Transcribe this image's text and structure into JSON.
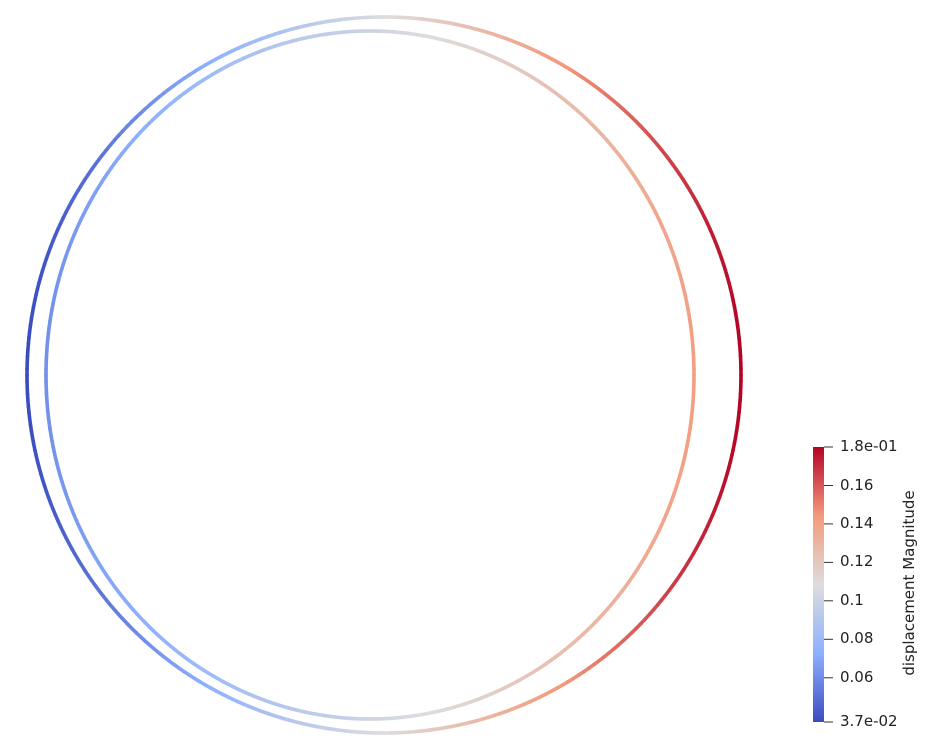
{
  "scene": {
    "description_free": true,
    "color_map": {
      "low_color": "#3b4cc0",
      "mid_color": "#dddddd",
      "high_color": "#b40426"
    }
  },
  "colorbar": {
    "title": "displacement Magnitude",
    "range": [
      0.037,
      0.18
    ],
    "tick_labels": [
      {
        "label": "1.8e-01",
        "value": 0.18
      },
      {
        "label": "0.16",
        "value": 0.16
      },
      {
        "label": "0.14",
        "value": 0.14
      },
      {
        "label": "0.12",
        "value": 0.12
      },
      {
        "label": "0.1",
        "value": 0.1
      },
      {
        "label": "0.08",
        "value": 0.08
      },
      {
        "label": "0.06",
        "value": 0.06
      },
      {
        "label": "3.7e-02",
        "value": 0.037
      }
    ]
  }
}
